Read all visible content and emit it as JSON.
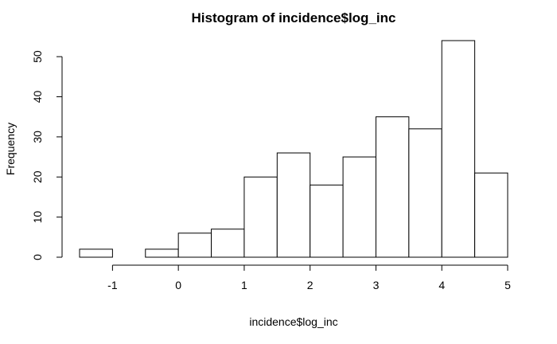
{
  "chart_data": {
    "type": "bar",
    "title": "Histogram of incidence$log_inc",
    "xlabel": "incidence$log_inc",
    "ylabel": "Frequency",
    "bin_edges": [
      -1.5,
      -1.0,
      -0.5,
      0.0,
      0.5,
      1.0,
      1.5,
      2.0,
      2.5,
      3.0,
      3.5,
      4.0,
      4.5,
      5.0
    ],
    "values": [
      2,
      0,
      2,
      6,
      7,
      20,
      26,
      18,
      25,
      35,
      32,
      54,
      21
    ],
    "xlim": [
      -1.5,
      5.0
    ],
    "ylim": [
      0,
      54
    ],
    "x_ticks": [
      -1,
      0,
      1,
      2,
      3,
      4,
      5
    ],
    "x_tick_labels": [
      "-1",
      "0",
      "1",
      "2",
      "3",
      "4",
      "5"
    ],
    "y_ticks": [
      0,
      10,
      20,
      30,
      40,
      50
    ],
    "y_tick_labels": [
      "0",
      "10",
      "20",
      "30",
      "40",
      "50"
    ],
    "grid": false,
    "legend": "none",
    "bar_fill": "#ffffff",
    "bar_stroke": "#000000"
  }
}
